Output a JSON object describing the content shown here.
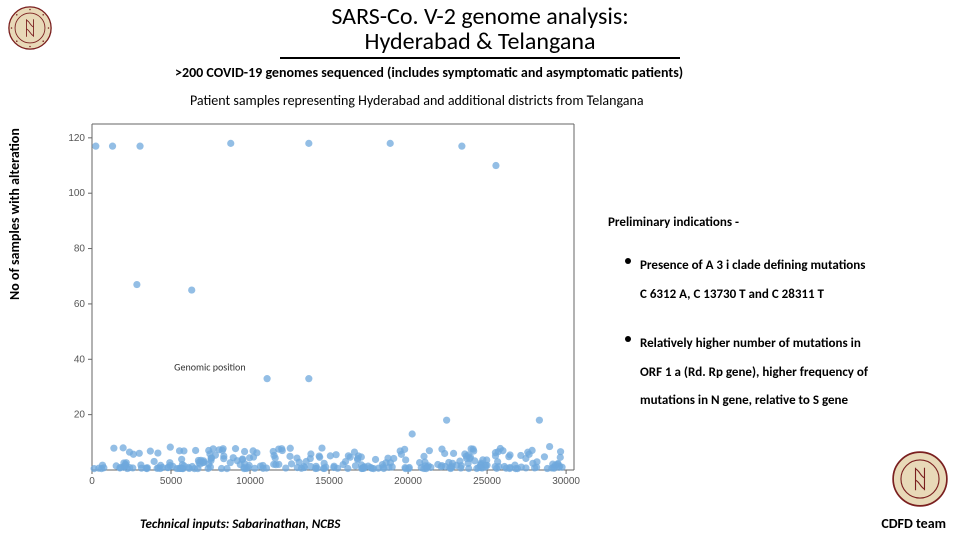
{
  "title_line1": "SARS-Co. V-2 genome analysis:",
  "title_line2": "Hyderabad & Telangana",
  "subtitle1": ">200 COVID-19 genomes sequenced (includes symptomatic and asymptomatic patients)",
  "subtitle2": "Patient samples representing Hyderabad and additional districts from Telangana",
  "ylabel": "No of samples with alteration",
  "prelim_title": "Preliminary indications -",
  "bullet1_line1": "Presence of A 3 i clade defining mutations",
  "bullet1_line2": "C 6312 A, C 13730 T and C 28311 T",
  "bullet2_line1": "Relatively higher number of mutations in",
  "bullet2_line2": "ORF 1 a (Rd. Rp gene), higher frequency of",
  "bullet2_line3": "mutations in N gene, relative to S gene",
  "tech_inputs": "Technical inputs: Sabarinathan, NCBS",
  "team_label": "CDFD team",
  "chart": {
    "xlim": [
      0,
      30500
    ],
    "ylim": [
      0,
      125
    ],
    "xticks": [
      0,
      5000,
      10000,
      15000,
      20000,
      25000,
      30000
    ],
    "yticks": [
      20,
      40,
      60,
      80,
      100,
      120
    ],
    "xlabel_inside": "Genomic position",
    "marker_color": "#6fa8dc",
    "marker_opacity": 0.75,
    "background": "#ffffff",
    "spine_color": "#666666",
    "high_points": [
      [
        240,
        117
      ],
      [
        1300,
        117
      ],
      [
        3040,
        117
      ],
      [
        8780,
        118
      ],
      [
        13720,
        118
      ],
      [
        18870,
        118
      ],
      [
        23405,
        117
      ],
      [
        25560,
        110
      ]
    ],
    "mid_points": [
      [
        2840,
        67
      ],
      [
        6310,
        65
      ],
      [
        11080,
        33
      ],
      [
        13720,
        33
      ],
      [
        20260,
        13
      ],
      [
        22440,
        18
      ],
      [
        28310,
        18
      ],
      [
        22880,
        6
      ]
    ],
    "low_cluster_xrange": [
      80,
      29850
    ],
    "low_cluster_density": 280,
    "low_cluster_ymax": 8
  },
  "logo": {
    "outer_color": "#7a1f1f",
    "inner_color": "#e8d9b8",
    "size_top": 44,
    "size_bot": 56
  }
}
